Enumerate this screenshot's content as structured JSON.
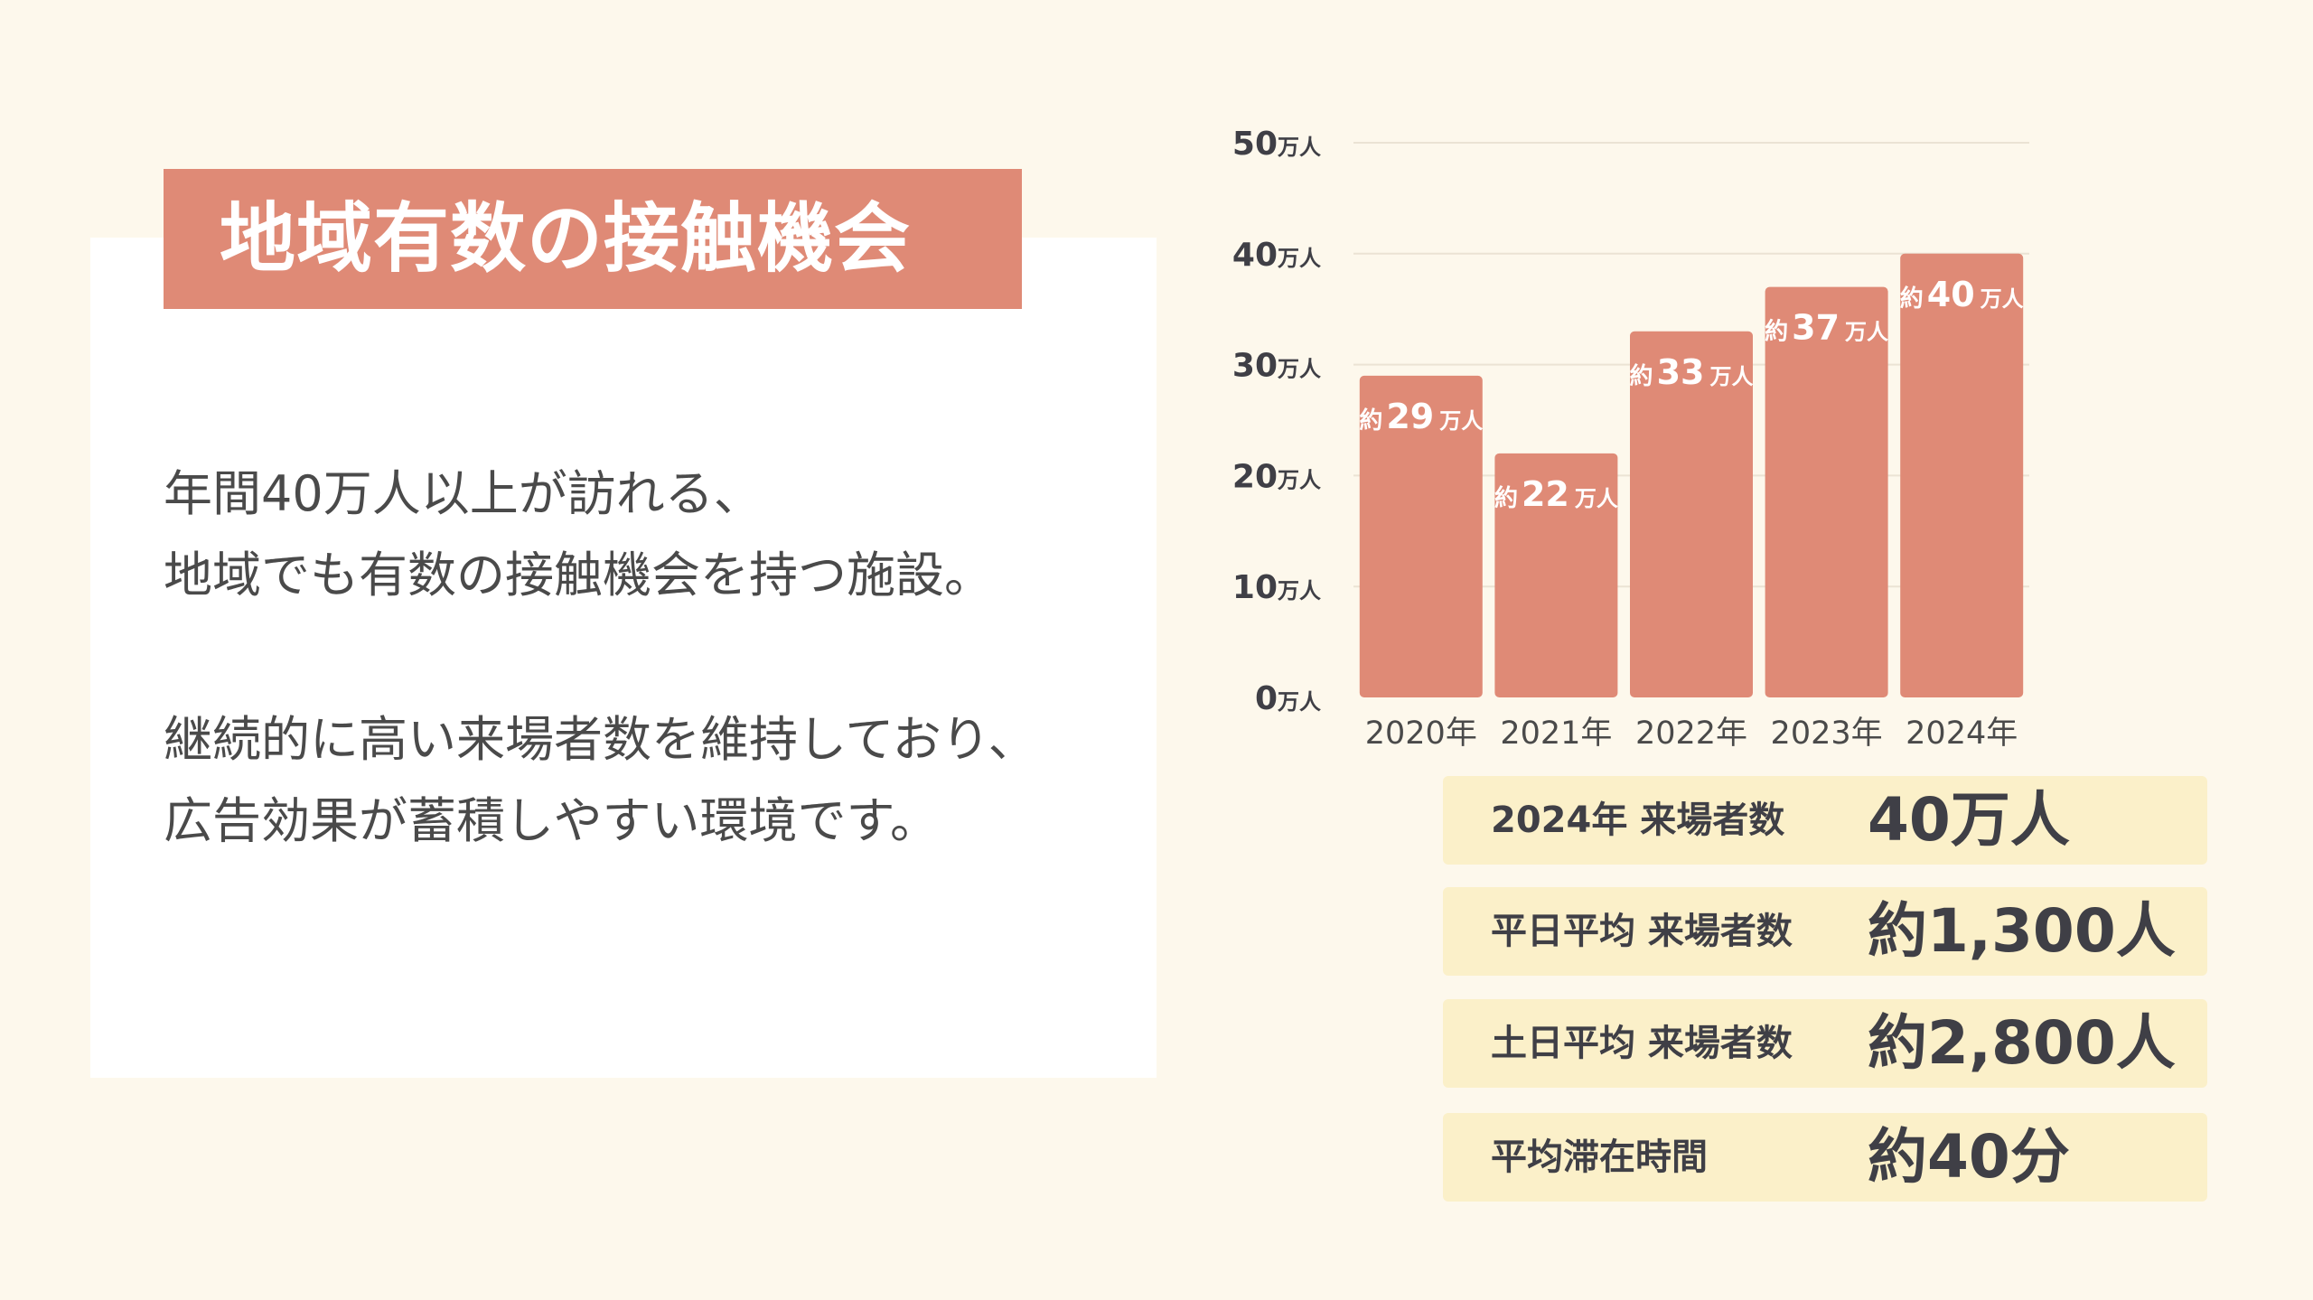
{
  "title": "地域有数の接触機会",
  "body": {
    "lines": [
      "年間40万人以上が訪れる、",
      "地域でも有数の接触機会を持つ施設。",
      "継続的に高い来場者数を維持しており、",
      "広告効果が蓄積しやすい環境です。"
    ]
  },
  "colors": {
    "accent": "#df8a76",
    "background": "#fdf8ec",
    "panel": "#ffffff",
    "stat_bg": "#fbf0c9",
    "text_dark": "#3f3f46",
    "text_body": "#4a4a4a"
  },
  "chart_data": {
    "type": "bar",
    "categories": [
      "2020年",
      "2021年",
      "2022年",
      "2023年",
      "2024年"
    ],
    "values": [
      29,
      22,
      33,
      37,
      40
    ],
    "data_labels": [
      {
        "prefix": "約",
        "num": "29",
        "unit": "万人"
      },
      {
        "prefix": "約",
        "num": "22",
        "unit": "万人"
      },
      {
        "prefix": "約",
        "num": "33",
        "unit": "万人"
      },
      {
        "prefix": "約",
        "num": "37",
        "unit": "万人"
      },
      {
        "prefix": "約",
        "num": "40",
        "unit": "万人"
      }
    ],
    "ylim": [
      0,
      50
    ],
    "yticks": [
      {
        "value": 0,
        "num": "0",
        "unit": "万人"
      },
      {
        "value": 10,
        "num": "10",
        "unit": "万人"
      },
      {
        "value": 20,
        "num": "20",
        "unit": "万人"
      },
      {
        "value": 30,
        "num": "30",
        "unit": "万人"
      },
      {
        "value": 40,
        "num": "40",
        "unit": "万人"
      },
      {
        "value": 50,
        "num": "50",
        "unit": "万人"
      }
    ],
    "grid": true
  },
  "stats": [
    {
      "label": "2024年 来場者数",
      "value": "40万人"
    },
    {
      "label": "平日平均 来場者数",
      "value": "約1,300人"
    },
    {
      "label": "土日平均 来場者数",
      "value": "約2,800人"
    },
    {
      "label": "平均滞在時間",
      "value": "約40分"
    }
  ]
}
